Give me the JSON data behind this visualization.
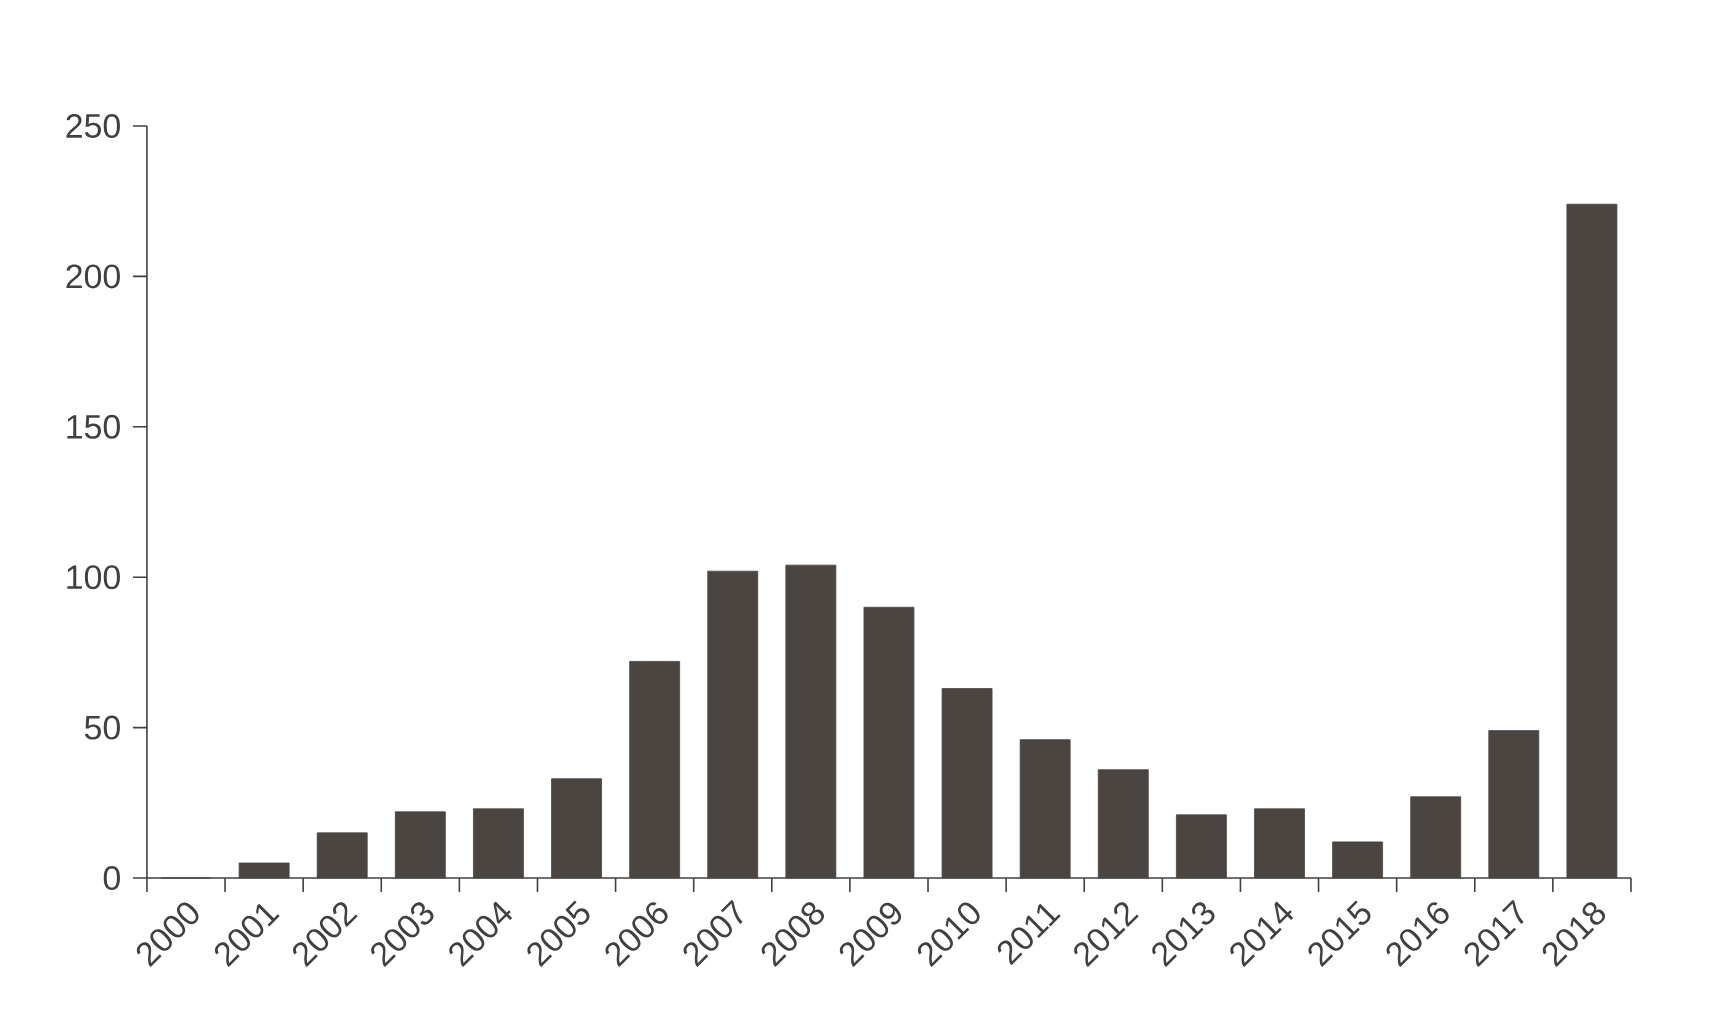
{
  "chart_data": {
    "type": "bar",
    "categories": [
      "2000",
      "2001",
      "2002",
      "2003",
      "2004",
      "2005",
      "2006",
      "2007",
      "2008",
      "2009",
      "2010",
      "2011",
      "2012",
      "2013",
      "2014",
      "2015",
      "2016",
      "2017",
      "2018"
    ],
    "values": [
      0,
      5,
      15,
      22,
      23,
      33,
      72,
      102,
      104,
      90,
      63,
      46,
      36,
      21,
      23,
      12,
      27,
      49,
      224
    ],
    "color": "#4a4540",
    "ylim": [
      0,
      250
    ],
    "yticks": [
      0,
      50,
      100,
      150,
      200,
      250
    ]
  }
}
